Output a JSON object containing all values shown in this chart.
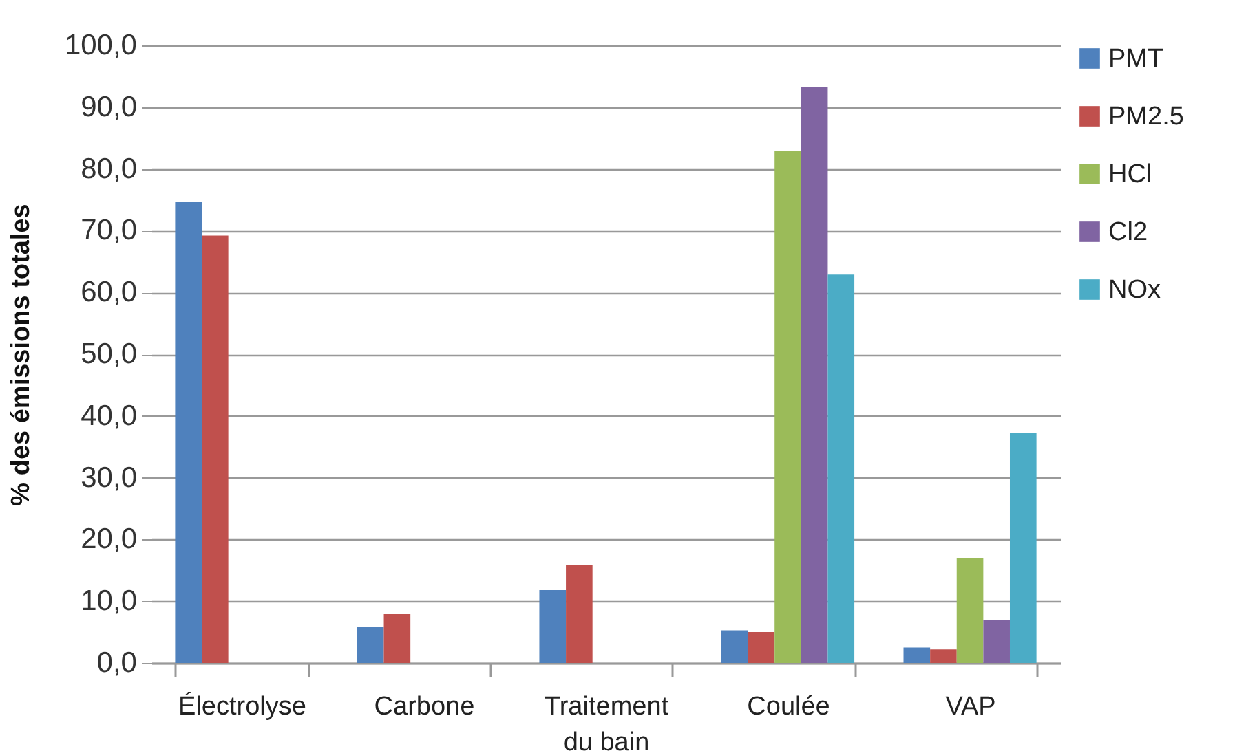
{
  "chart_data": {
    "type": "bar",
    "ylabel": "% des émissions totales",
    "categories": [
      "Électrolyse",
      "Carbone",
      "Traitement du bain",
      "Coulée",
      "VAP"
    ],
    "series": [
      {
        "name": "PMT",
        "color": "#4f81bd",
        "values": [
          74.6,
          5.8,
          11.8,
          5.3,
          2.5
        ]
      },
      {
        "name": "PM2.5",
        "color": "#c0504d",
        "values": [
          69.2,
          7.9,
          15.9,
          5.0,
          2.2
        ]
      },
      {
        "name": "HCl",
        "color": "#9bbb59",
        "values": [
          null,
          null,
          null,
          82.9,
          17.0
        ]
      },
      {
        "name": "Cl2",
        "color": "#8064a2",
        "values": [
          null,
          null,
          null,
          93.2,
          7.0
        ]
      },
      {
        "name": "NOx",
        "color": "#4bacc6",
        "values": [
          null,
          null,
          null,
          62.9,
          37.3
        ]
      }
    ],
    "ylim": [
      0,
      100
    ],
    "yticks": [
      {
        "value": 0,
        "label": "0,0"
      },
      {
        "value": 10,
        "label": "10,0"
      },
      {
        "value": 20,
        "label": "20,0"
      },
      {
        "value": 30,
        "label": "30,0"
      },
      {
        "value": 40,
        "label": "40,0"
      },
      {
        "value": 50,
        "label": "50,0"
      },
      {
        "value": 60,
        "label": "60,0"
      },
      {
        "value": 70,
        "label": "70,0"
      },
      {
        "value": 80,
        "label": "80,0"
      },
      {
        "value": 90,
        "label": "90,0"
      },
      {
        "value": 100,
        "label": "100,0"
      }
    ],
    "grid": "y",
    "legend": "right"
  }
}
